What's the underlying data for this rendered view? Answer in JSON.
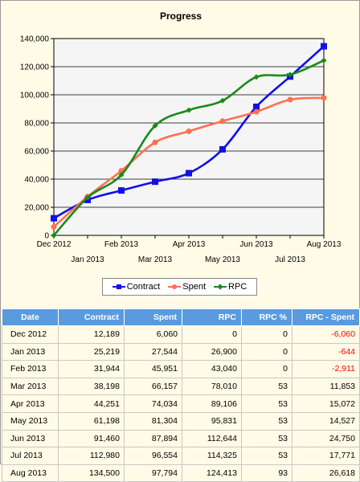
{
  "colors": {
    "contract": "#1010e8",
    "spent": "#ff7050",
    "rpc": "#1a8a1a",
    "header": "#5a9be0",
    "plot_bg": "#f5f5f5",
    "negative": "#ff0000"
  },
  "chart_data": {
    "type": "line",
    "title": "Progress",
    "xlabel": "",
    "ylabel": "",
    "categories": [
      "Dec 2012",
      "Jan 2013",
      "Feb 2013",
      "Mar 2013",
      "Apr 2013",
      "May 2013",
      "Jun 2013",
      "Jul 2013",
      "Aug 2013"
    ],
    "y_ticks": [
      "0",
      "20,000",
      "40,000",
      "60,000",
      "80,000",
      "100,000",
      "120,000",
      "140,000"
    ],
    "ylim": [
      0,
      140000
    ],
    "grid": true,
    "legend_position": "bottom",
    "series": [
      {
        "name": "Contract",
        "color_key": "contract",
        "marker": "square",
        "values": [
          12189,
          25219,
          31944,
          38198,
          44251,
          61198,
          91460,
          112980,
          134500
        ]
      },
      {
        "name": "Spent",
        "color_key": "spent",
        "marker": "circle",
        "values": [
          6060,
          27544,
          45951,
          66157,
          74034,
          81304,
          87894,
          96554,
          97794
        ]
      },
      {
        "name": "RPC",
        "color_key": "rpc",
        "marker": "diamond",
        "values": [
          0,
          26900,
          43040,
          78010,
          89106,
          95831,
          112644,
          114325,
          124413
        ]
      }
    ]
  },
  "table": {
    "headers": [
      "Date",
      "Contract",
      "Spent",
      "RPC",
      "RPC %",
      "RPC - Spent"
    ],
    "rows": [
      {
        "date": "Dec 2012",
        "contract": "12,189",
        "spent": "6,060",
        "rpc": "0",
        "rpc_pct": "0",
        "diff": "-6,060"
      },
      {
        "date": "Jan 2013",
        "contract": "25,219",
        "spent": "27,544",
        "rpc": "26,900",
        "rpc_pct": "0",
        "diff": "-644"
      },
      {
        "date": "Feb 2013",
        "contract": "31,944",
        "spent": "45,951",
        "rpc": "43,040",
        "rpc_pct": "0",
        "diff": "-2,911"
      },
      {
        "date": "Mar 2013",
        "contract": "38,198",
        "spent": "66,157",
        "rpc": "78,010",
        "rpc_pct": "53",
        "diff": "11,853"
      },
      {
        "date": "Apr 2013",
        "contract": "44,251",
        "spent": "74,034",
        "rpc": "89,106",
        "rpc_pct": "53",
        "diff": "15,072"
      },
      {
        "date": "May 2013",
        "contract": "61,198",
        "spent": "81,304",
        "rpc": "95,831",
        "rpc_pct": "53",
        "diff": "14,527"
      },
      {
        "date": "Jun 2013",
        "contract": "91,460",
        "spent": "87,894",
        "rpc": "112,644",
        "rpc_pct": "53",
        "diff": "24,750"
      },
      {
        "date": "Jul 2013",
        "contract": "112,980",
        "spent": "96,554",
        "rpc": "114,325",
        "rpc_pct": "53",
        "diff": "17,771"
      },
      {
        "date": "Aug 2013",
        "contract": "134,500",
        "spent": "97,794",
        "rpc": "124,413",
        "rpc_pct": "93",
        "diff": "26,618"
      }
    ]
  }
}
